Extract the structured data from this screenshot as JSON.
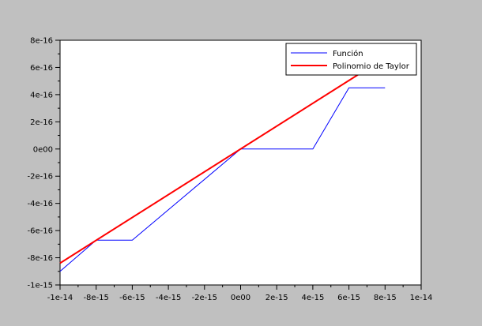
{
  "chart_data": {
    "type": "line",
    "title": "",
    "xlabel": "",
    "ylabel": "",
    "xlim": [
      -1e-14,
      1e-14
    ],
    "ylim": [
      -1e-15,
      8e-16
    ],
    "grid": false,
    "legend_position": "top-right",
    "xticks": [
      {
        "value": -1e-14,
        "label": "-1e-14"
      },
      {
        "value": -8e-15,
        "label": "-8e-15"
      },
      {
        "value": -6e-15,
        "label": "-6e-15"
      },
      {
        "value": -4e-15,
        "label": "-4e-15"
      },
      {
        "value": -2e-15,
        "label": "-2e-15"
      },
      {
        "value": 0,
        "label": "0e00"
      },
      {
        "value": 2e-15,
        "label": "2e-15"
      },
      {
        "value": 4e-15,
        "label": "4e-15"
      },
      {
        "value": 6e-15,
        "label": "6e-15"
      },
      {
        "value": 8e-15,
        "label": "8e-15"
      },
      {
        "value": 1e-14,
        "label": "1e-14"
      }
    ],
    "yticks": [
      {
        "value": 8e-16,
        "label": "8e-16"
      },
      {
        "value": 6e-16,
        "label": "6e-16"
      },
      {
        "value": 4e-16,
        "label": "4e-16"
      },
      {
        "value": 2e-16,
        "label": "2e-16"
      },
      {
        "value": 0,
        "label": "0e00"
      },
      {
        "value": -2e-16,
        "label": "-2e-16"
      },
      {
        "value": -4e-16,
        "label": "-4e-16"
      },
      {
        "value": -6e-16,
        "label": "-6e-16"
      },
      {
        "value": -8e-16,
        "label": "-8e-16"
      },
      {
        "value": -1e-15,
        "label": "-1e-15"
      }
    ],
    "series": [
      {
        "name": "Función",
        "color": "#0000ff",
        "x": [
          -1e-14,
          -8e-15,
          -6e-15,
          0,
          4e-15,
          6e-15,
          8e-15
        ],
        "y": [
          -9e-16,
          -6.7e-16,
          -6.7e-16,
          0,
          0,
          4.5e-16,
          4.5e-16
        ]
      },
      {
        "name": "Polinomio de Taylor",
        "color": "#ff0000",
        "x": [
          -1e-14,
          6.75e-15
        ],
        "y": [
          -8.4e-16,
          5.67e-16
        ]
      }
    ]
  }
}
